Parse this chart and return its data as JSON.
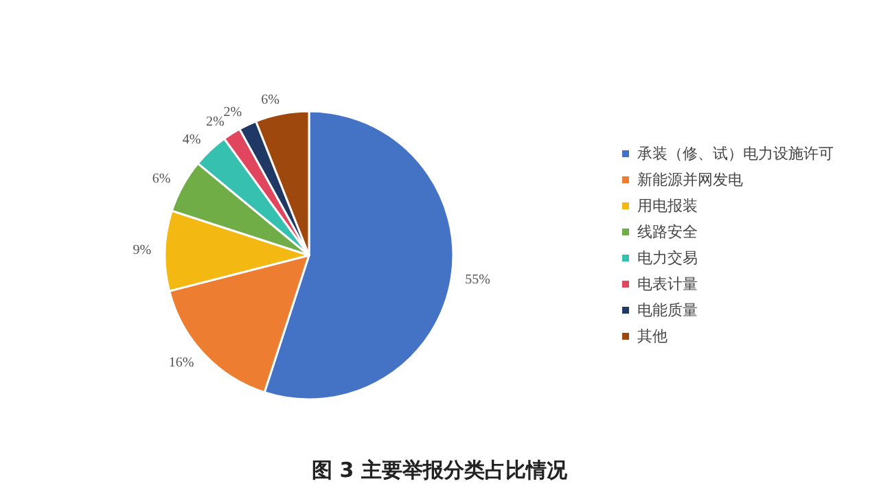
{
  "chart_data": {
    "type": "pie",
    "title": "图 3 主要举报分类占比情况",
    "categories": [
      "承装（修、试）电力设施许可",
      "新能源并网发电",
      "用电报装",
      "线路安全",
      "电力交易",
      "电表计量",
      "电能质量",
      "其他"
    ],
    "values": [
      55,
      16,
      9,
      6,
      4,
      2,
      2,
      6
    ],
    "colors": [
      "#4472c4",
      "#ed7d31",
      "#f4b813",
      "#70ad47",
      "#35c0b0",
      "#e0475f",
      "#1f3864",
      "#9e480e"
    ],
    "value_labels": [
      "55%",
      "16%",
      "9%",
      "6%",
      "4%",
      "2%",
      "2%",
      "6%"
    ],
    "legend": "right"
  }
}
